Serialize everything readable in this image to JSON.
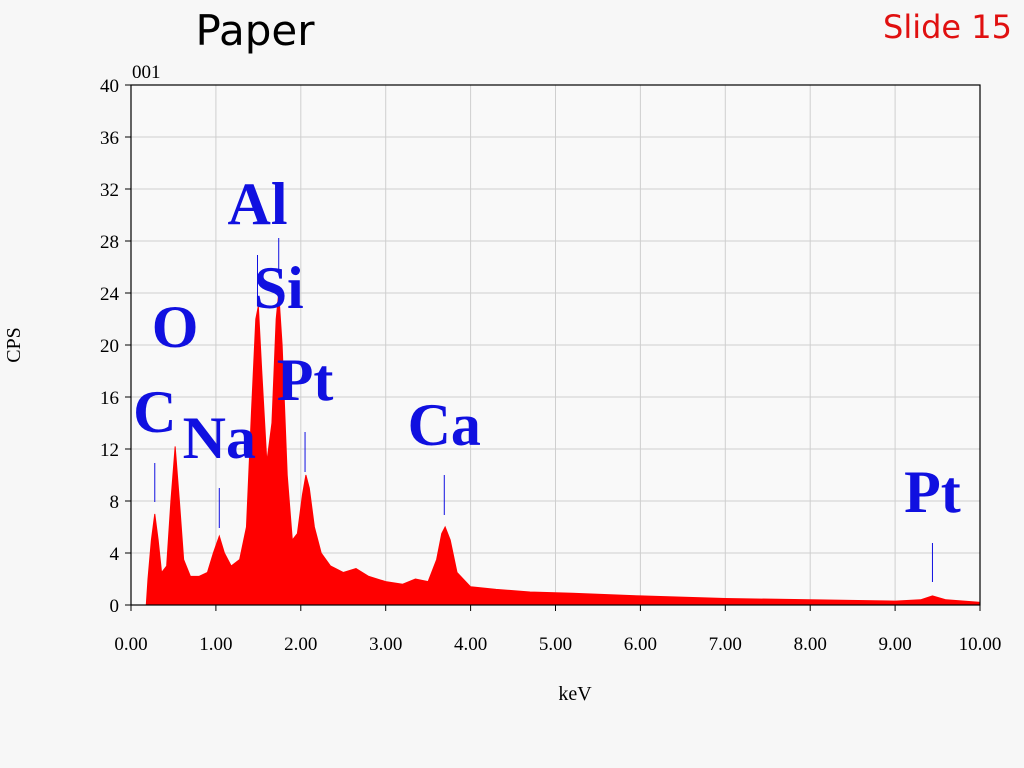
{
  "chart_data": {
    "type": "area",
    "title": "Paper",
    "slide_label": "Slide 15",
    "spectrum_label": "001",
    "x_label": "keV",
    "y_label": "CPS",
    "color": "#ff0000",
    "grid": true,
    "xlim": [
      0,
      10
    ],
    "ylim": [
      0,
      40
    ],
    "xticks": [
      {
        "value": 0,
        "label": "0.00"
      },
      {
        "value": 1,
        "label": "1.00"
      },
      {
        "value": 2,
        "label": "2.00"
      },
      {
        "value": 3,
        "label": "3.00"
      },
      {
        "value": 4,
        "label": "4.00"
      },
      {
        "value": 5,
        "label": "5.00"
      },
      {
        "value": 6,
        "label": "6.00"
      },
      {
        "value": 7,
        "label": "7.00"
      },
      {
        "value": 8,
        "label": "8.00"
      },
      {
        "value": 9,
        "label": "9.00"
      },
      {
        "value": 10,
        "label": "10.00"
      }
    ],
    "yticks": [
      0,
      4,
      8,
      12,
      16,
      20,
      24,
      28,
      32,
      36,
      40
    ],
    "x": [
      0,
      0.18,
      0.2,
      0.24,
      0.28,
      0.32,
      0.36,
      0.42,
      0.47,
      0.52,
      0.57,
      0.62,
      0.7,
      0.8,
      0.9,
      0.97,
      1.04,
      1.1,
      1.18,
      1.28,
      1.36,
      1.42,
      1.47,
      1.5,
      1.54,
      1.6,
      1.66,
      1.71,
      1.74,
      1.78,
      1.84,
      1.9,
      1.96,
      2.02,
      2.06,
      2.1,
      2.16,
      2.24,
      2.35,
      2.5,
      2.65,
      2.8,
      3.0,
      3.2,
      3.35,
      3.5,
      3.6,
      3.66,
      3.7,
      3.76,
      3.84,
      4.0,
      4.3,
      4.7,
      5.2,
      6.0,
      7.0,
      8.0,
      9.0,
      9.3,
      9.44,
      9.6,
      10.0
    ],
    "values": [
      0,
      0,
      2,
      5,
      7,
      5,
      2.5,
      3,
      8,
      12.2,
      8,
      3.5,
      2.2,
      2.2,
      2.5,
      4,
      5.3,
      4,
      3,
      3.5,
      6,
      15,
      22,
      23,
      18,
      11,
      14,
      22,
      24,
      20,
      10,
      5,
      5.5,
      8.5,
      10,
      9,
      6,
      4,
      3,
      2.5,
      2.8,
      2.2,
      1.8,
      1.6,
      2,
      1.8,
      3.5,
      5.5,
      6,
      5,
      2.5,
      1.4,
      1.2,
      1,
      0.9,
      0.7,
      0.5,
      0.4,
      0.3,
      0.4,
      0.7,
      0.4,
      0.2
    ],
    "annotations": [
      {
        "label": "C",
        "x": 0.28
      },
      {
        "label": "O",
        "x": 0.52
      },
      {
        "label": "Na",
        "x": 1.04
      },
      {
        "label": "Al",
        "x": 1.49
      },
      {
        "label": "Si",
        "x": 1.74
      },
      {
        "label": "Pt",
        "x": 2.05
      },
      {
        "label": "Ca",
        "x": 3.69
      },
      {
        "label": "Pt",
        "x": 9.44
      }
    ]
  }
}
